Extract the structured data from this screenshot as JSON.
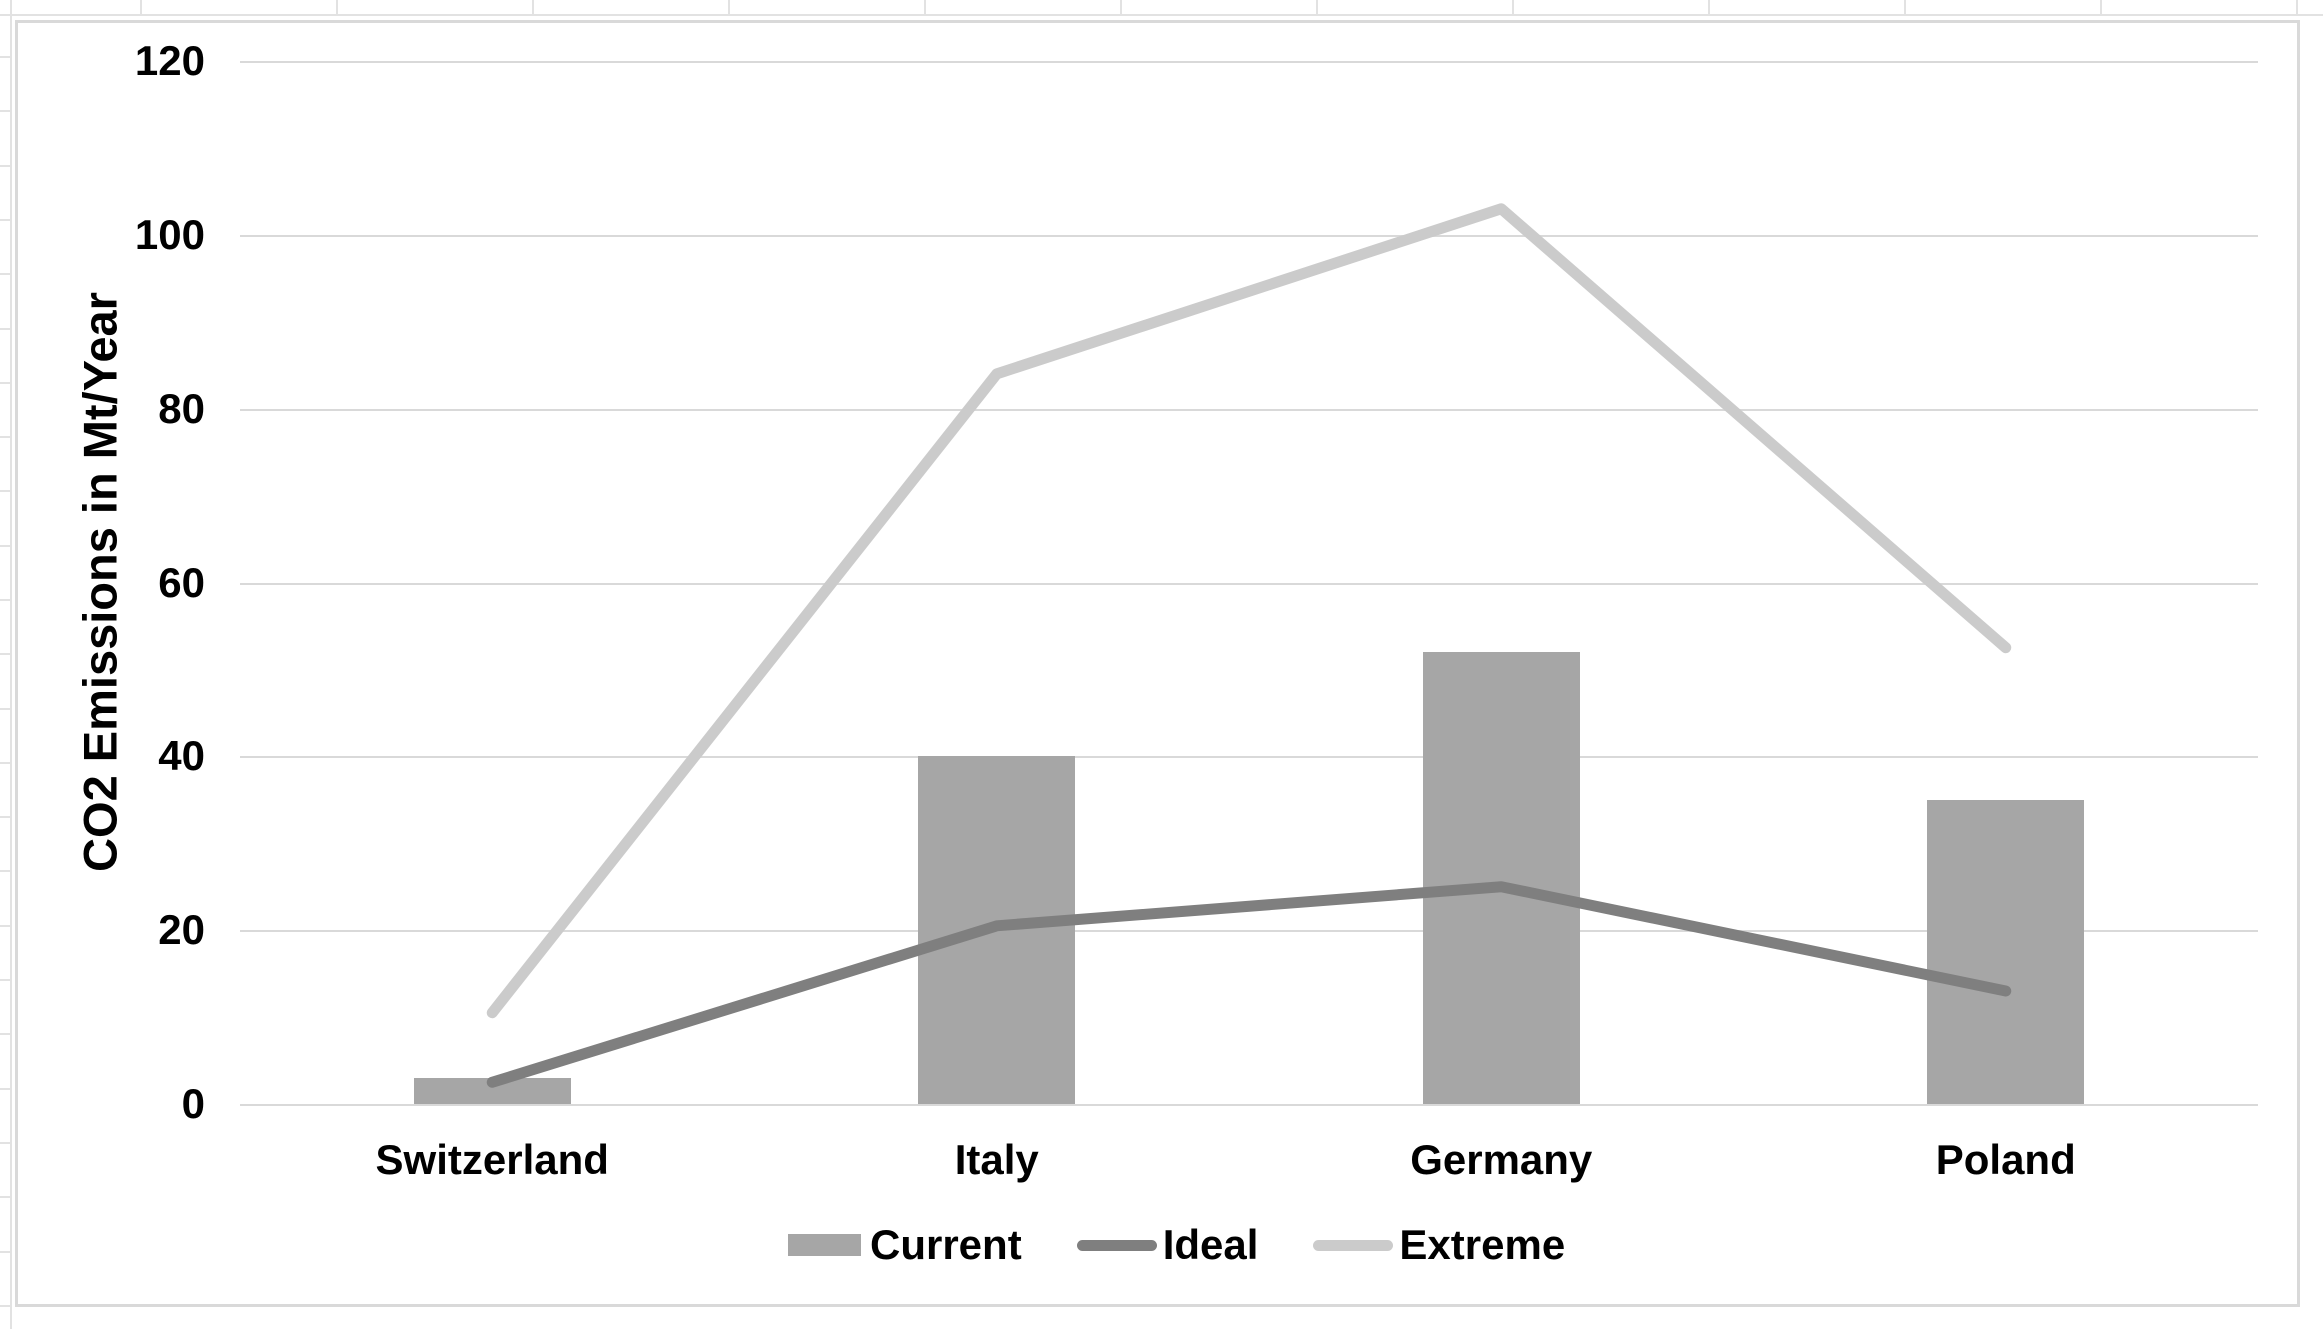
{
  "chart_data": {
    "type": "combo",
    "categories": [
      "Switzerland",
      "Italy",
      "Germany",
      "Poland"
    ],
    "series": [
      {
        "name": "Current",
        "type": "bar",
        "values": [
          3,
          40,
          52,
          35
        ],
        "color": "#a6a6a6"
      },
      {
        "name": "Ideal",
        "type": "line",
        "values": [
          2.5,
          20.5,
          25,
          13
        ],
        "color": "#7f7f7f"
      },
      {
        "name": "Extreme",
        "type": "line",
        "values": [
          10.5,
          84,
          103,
          52.5
        ],
        "color": "#cbcbcb"
      }
    ],
    "title": "",
    "xlabel": "",
    "ylabel": "CO2 Emissions in Mt/Year",
    "yticks": [
      0,
      20,
      40,
      60,
      80,
      100,
      120
    ],
    "ylim": [
      0,
      120
    ],
    "grid": true,
    "legend_position": "bottom",
    "legend_labels": [
      "Current",
      "Ideal",
      "Extreme"
    ]
  },
  "colors": {
    "gridline": "#d9d9d9",
    "frame_border": "#d9d9d9",
    "text": "#000000",
    "background": "#ffffff",
    "sheet_lines": "#e2e2e2"
  }
}
